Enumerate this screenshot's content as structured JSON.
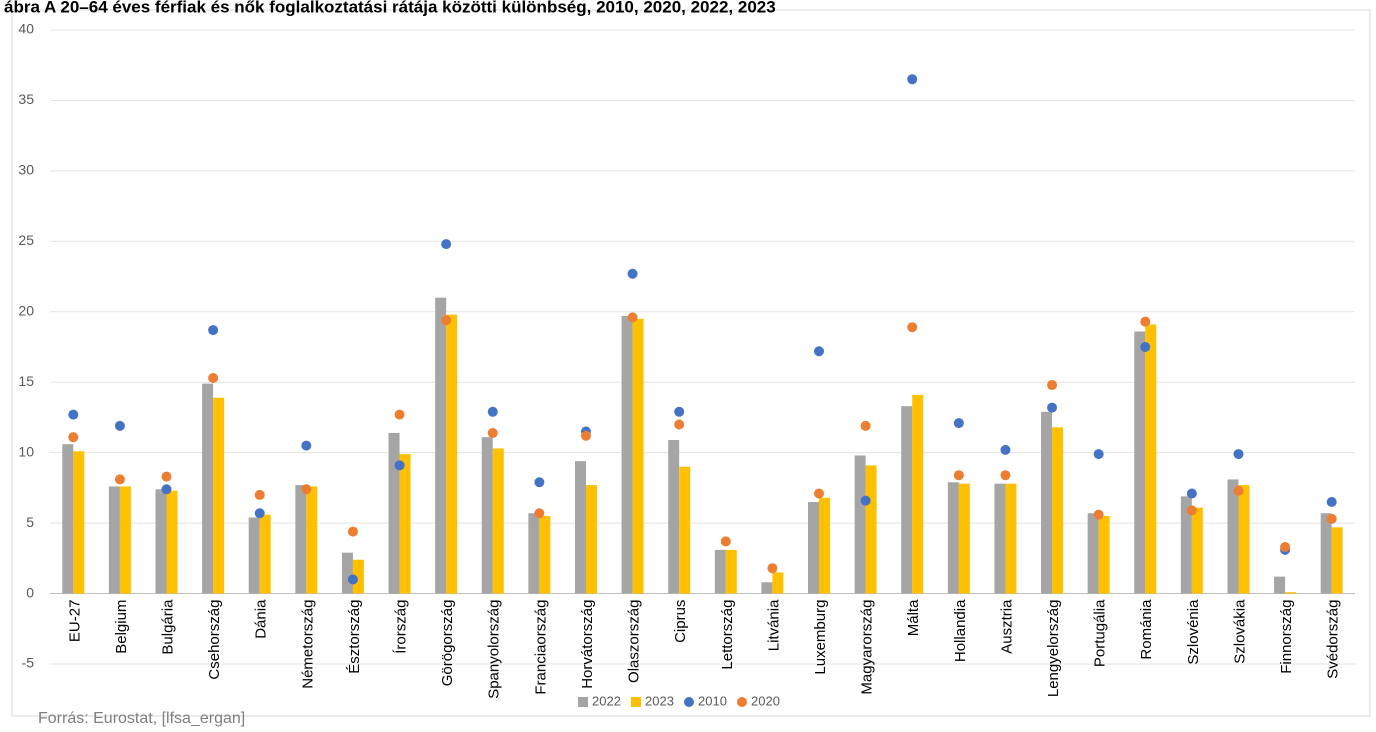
{
  "chart_data": {
    "type": "bar",
    "title": "ábra A 20–64 éves férfiak és nők foglalkoztatási rátája közötti különbség, 2010, 2020, 2022, 2023",
    "source": "Forrás: Eurostat, [lfsa_ergan]",
    "categories": [
      "EU-27",
      "Belgium",
      "Bulgária",
      "Csehország",
      "Dánia",
      "Németország",
      "Észtország",
      "Írország",
      "Görögország",
      "Spanyolország",
      "Franciaország",
      "Horvátország",
      "Olaszország",
      "Ciprus",
      "Lettország",
      "Litvánia",
      "Luxemburg",
      "Magyarország",
      "Málta",
      "Hollandia",
      "Ausztria",
      "Lengyelország",
      "Portugália",
      "Románia",
      "Szlovénia",
      "Szlovákia",
      "Finnország",
      "Svédország"
    ],
    "series": [
      {
        "name": "2022",
        "kind": "bar",
        "color": "#a5a5a5",
        "values": [
          10.6,
          7.6,
          7.4,
          14.9,
          5.4,
          7.7,
          2.9,
          11.4,
          21.0,
          11.1,
          5.7,
          9.4,
          19.7,
          10.9,
          3.1,
          0.8,
          6.5,
          9.8,
          13.3,
          7.9,
          7.8,
          12.9,
          5.7,
          18.6,
          6.9,
          8.1,
          1.2,
          5.7
        ]
      },
      {
        "name": "2023",
        "kind": "bar",
        "color": "#ffc000",
        "values": [
          10.1,
          7.6,
          7.3,
          13.9,
          5.6,
          7.6,
          2.4,
          9.9,
          19.8,
          10.3,
          5.5,
          7.7,
          19.5,
          9.0,
          3.1,
          1.5,
          6.8,
          9.1,
          14.1,
          7.8,
          7.8,
          11.8,
          5.5,
          19.1,
          6.1,
          7.7,
          0.1,
          4.7
        ]
      },
      {
        "name": "2010",
        "kind": "dot",
        "color": "#4472c4",
        "values": [
          12.7,
          11.9,
          7.4,
          18.7,
          5.7,
          10.5,
          1.0,
          9.1,
          24.8,
          12.9,
          7.9,
          11.5,
          22.7,
          12.9,
          null,
          null,
          17.2,
          6.6,
          36.5,
          12.1,
          10.2,
          13.2,
          9.9,
          17.5,
          7.1,
          9.9,
          3.1,
          6.5
        ]
      },
      {
        "name": "2020",
        "kind": "dot",
        "color": "#ed7d31",
        "values": [
          11.1,
          8.1,
          8.3,
          15.3,
          7.0,
          7.4,
          4.4,
          12.7,
          19.4,
          11.4,
          5.7,
          11.2,
          19.6,
          12.0,
          3.7,
          1.8,
          7.1,
          11.9,
          18.9,
          8.4,
          8.4,
          14.8,
          5.6,
          19.3,
          5.9,
          7.3,
          3.3,
          5.3
        ]
      }
    ],
    "ylim": [
      -5,
      40
    ],
    "yticks": [
      -5,
      0,
      5,
      10,
      15,
      20,
      25,
      30,
      35,
      40
    ],
    "grid": true
  }
}
